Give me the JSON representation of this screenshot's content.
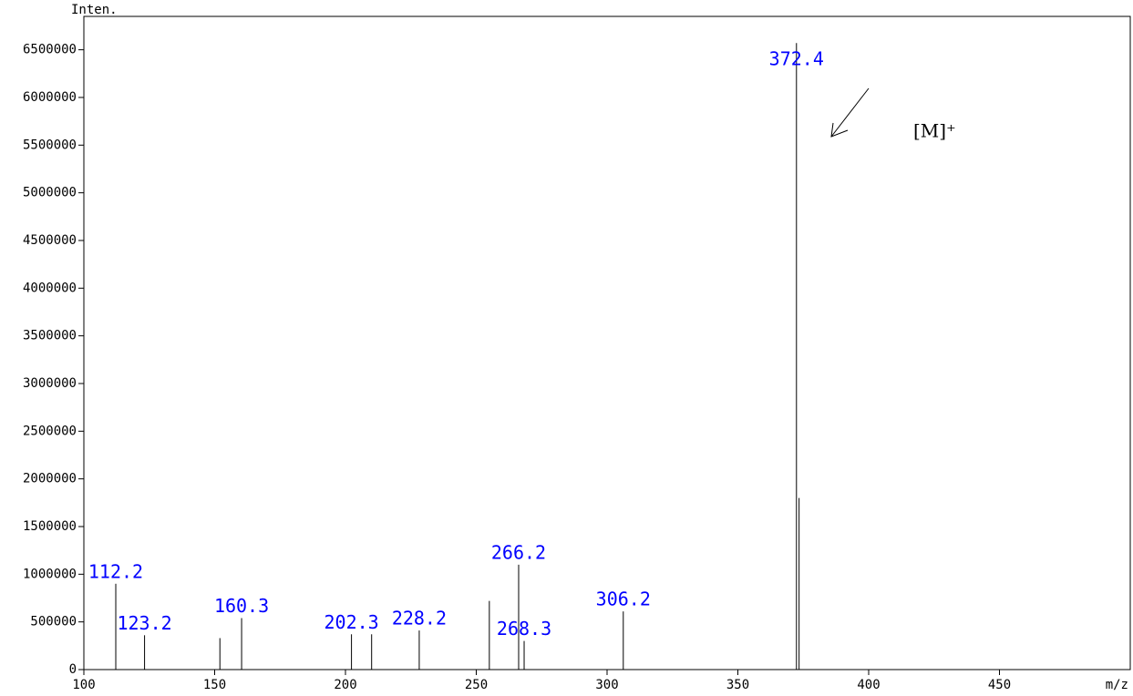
{
  "chart_data": {
    "type": "stem",
    "y_label": "Inten.",
    "x_label": "m/z",
    "annotation": "[M]⁺",
    "x": [
      112.2,
      123.2,
      152,
      160.3,
      202.3,
      210,
      228.2,
      255,
      266.2,
      268.3,
      306.2,
      372.4,
      373.4
    ],
    "x_labels": [
      "112.2",
      "123.2",
      null,
      "160.3",
      "202.3",
      null,
      "228.2",
      null,
      "266.2",
      "268.3",
      "306.2",
      "372.4",
      null
    ],
    "values": [
      900000,
      360000,
      330000,
      540000,
      370000,
      370000,
      410000,
      720000,
      1100000,
      300000,
      610000,
      6570000,
      1800000
    ],
    "color": "#000000",
    "label_color": "#0000ff",
    "xlim": [
      100,
      500
    ],
    "xticks": [
      100,
      150,
      200,
      250,
      300,
      350,
      400,
      450
    ],
    "ylim": [
      0,
      6850000
    ],
    "yticks": [
      0,
      500000,
      1000000,
      1500000,
      2000000,
      2500000,
      3000000,
      3500000,
      4000000,
      4500000,
      5000000,
      5500000,
      6000000,
      6500000
    ]
  }
}
